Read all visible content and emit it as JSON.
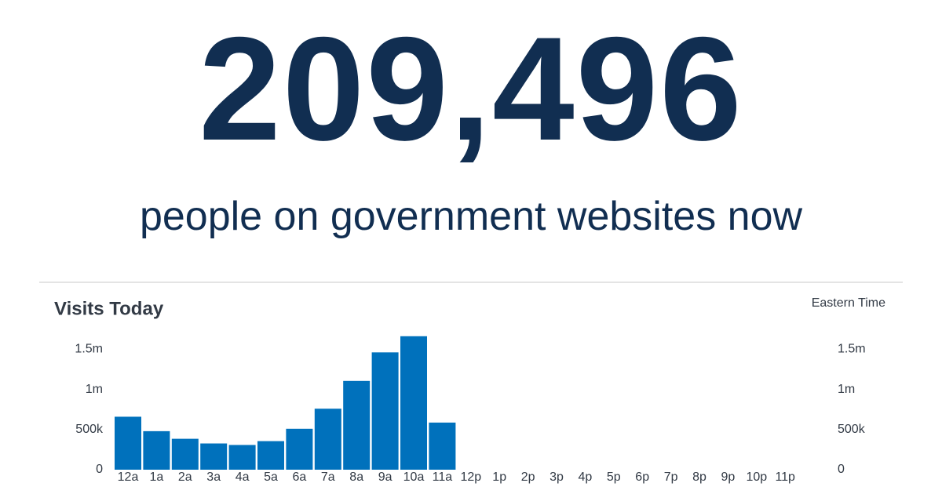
{
  "headline": {
    "count": "209,496",
    "caption": "people on government websites now"
  },
  "chart_data": {
    "type": "bar",
    "title": "Visits Today",
    "annotation": "Eastern Time",
    "categories": [
      "12a",
      "1a",
      "2a",
      "3a",
      "4a",
      "5a",
      "6a",
      "7a",
      "8a",
      "9a",
      "10a",
      "11a",
      "12p",
      "1p",
      "2p",
      "3p",
      "4p",
      "5p",
      "6p",
      "7p",
      "8p",
      "9p",
      "10p",
      "11p"
    ],
    "values": [
      660000,
      480000,
      385000,
      327000,
      308000,
      356000,
      510000,
      760000,
      1106000,
      1462000,
      1663000,
      587000,
      null,
      null,
      null,
      null,
      null,
      null,
      null,
      null,
      null,
      null,
      null,
      null
    ],
    "color": "#0071bc",
    "ylim": [
      0,
      1700000
    ],
    "yticks": [
      0,
      {
        "value": 500000,
        "label": "500k"
      },
      {
        "value": 1000000,
        "label": "1m"
      },
      {
        "value": 1500000,
        "label": "1.5m"
      }
    ],
    "y2lim": [
      0,
      1700000
    ],
    "y2ticks": [
      0,
      {
        "value": 500000,
        "label": "500k"
      },
      {
        "value": 1000000,
        "label": "1m"
      },
      {
        "value": 1500000,
        "label": "1.5m"
      }
    ],
    "grid": false
  }
}
